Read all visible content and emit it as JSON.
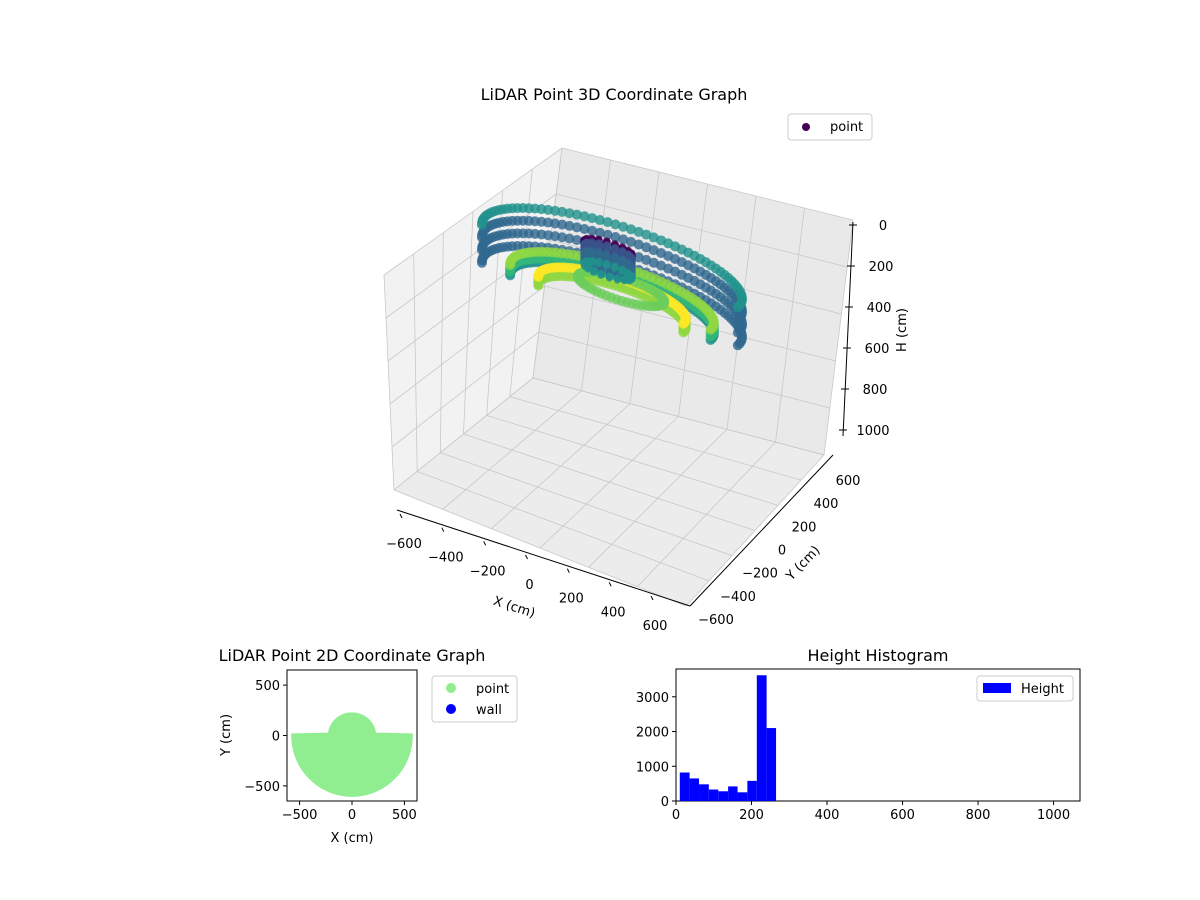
{
  "chart_data": [
    {
      "type": "scatter3d",
      "title": "LiDAR Point 3D Coordinate Graph",
      "xlabel": "X (cm)",
      "ylabel": "Y (cm)",
      "zlabel": "H (cm)",
      "xticks": [
        "−600",
        "−400",
        "−200",
        "0",
        "200",
        "400",
        "600"
      ],
      "yticks": [
        "−600",
        "−400",
        "−200",
        "0",
        "200",
        "400",
        "600"
      ],
      "zticks": [
        "0",
        "200",
        "400",
        "600",
        "800",
        "1000"
      ],
      "xlim": [
        -600,
        600
      ],
      "ylim": [
        -600,
        600
      ],
      "zlim": [
        0,
        1000
      ],
      "z_inverted": true,
      "colormap": "viridis",
      "legend": {
        "labels": [
          "point"
        ],
        "position": "upper-right"
      },
      "point_groups": [
        {
          "shape": "outer-arc",
          "r": 600,
          "z_range": [
            20,
            240
          ]
        },
        {
          "shape": "mid-arc",
          "r": 470,
          "z_range": [
            200,
            260
          ]
        },
        {
          "shape": "inner-arc",
          "r": 340,
          "z_range": [
            220,
            270
          ]
        },
        {
          "shape": "ring",
          "r": 160,
          "z_range": [
            230,
            270
          ]
        },
        {
          "shape": "column",
          "r": 120,
          "z_range": [
            10,
            240
          ]
        }
      ]
    },
    {
      "type": "scatter",
      "title": "LiDAR Point 2D Coordinate Graph",
      "xlabel": "X (cm)",
      "ylabel": "Y (cm)",
      "xticks": [
        "−500",
        "0",
        "500"
      ],
      "yticks": [
        "500",
        "0",
        "−500"
      ],
      "xlim": [
        -620,
        620
      ],
      "ylim": [
        -650,
        650
      ],
      "legend": {
        "labels": [
          "point",
          "wall"
        ],
        "position": "outside-right"
      },
      "series": [
        {
          "name": "point",
          "color": "#90ee90",
          "region": "half-disc plus top bump",
          "radius": 580,
          "bump_radius": 230
        },
        {
          "name": "wall",
          "color": "#0000ff",
          "points": []
        }
      ]
    },
    {
      "type": "bar",
      "title": "Height Histogram",
      "legend": {
        "labels": [
          "Height"
        ],
        "position": "upper-right"
      },
      "color": "#0000ff",
      "xticks": [
        "0",
        "200",
        "400",
        "600",
        "800",
        "1000"
      ],
      "yticks": [
        "0",
        "1000",
        "2000",
        "3000"
      ],
      "xlim": [
        0,
        1070
      ],
      "ylim": [
        0,
        3800
      ],
      "bins": [
        10,
        36,
        61,
        87,
        112,
        138,
        163,
        189,
        214,
        240,
        265
      ],
      "counts": [
        820,
        650,
        480,
        330,
        280,
        420,
        250,
        580,
        3620,
        2100
      ]
    }
  ],
  "colors": {
    "viridis_dark": "#440154",
    "viridis_mid": "#31688e",
    "viridis_teal": "#21918c",
    "viridis_light": "#b5de2b",
    "viridis_yellow": "#fde725"
  }
}
